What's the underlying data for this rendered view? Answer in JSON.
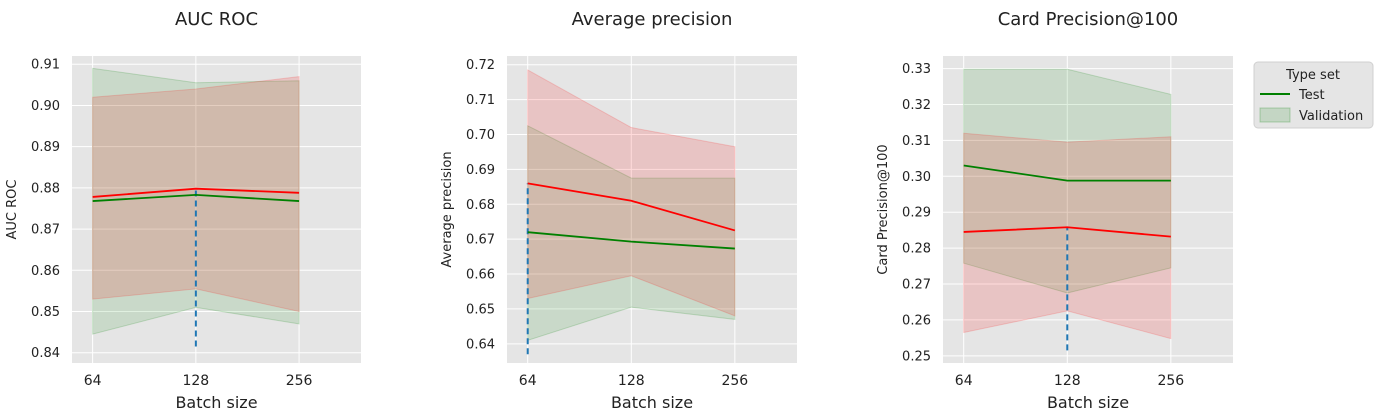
{
  "colors": {
    "background": "#e5e5e5",
    "grid": "#ffffff",
    "test": "#008000",
    "validation": "#ff0000",
    "test_band": "rgba(0,128,0,0.12)",
    "validation_band": "rgba(255,0,0,0.14)",
    "marker": "#1f77b4"
  },
  "legend": {
    "title": "Type set",
    "entries": [
      "Test",
      "Validation"
    ],
    "placement": "right, outside"
  },
  "chart_data": [
    {
      "type": "line",
      "title": "AUC ROC",
      "xlabel": "Batch size",
      "ylabel": "AUC ROC",
      "categories": [
        "64",
        "128",
        "256"
      ],
      "xlim": [
        0.2,
        0.9
      ],
      "ylim": [
        0.8375,
        0.912
      ],
      "yticks": [
        0.84,
        0.85,
        0.86,
        0.87,
        0.88,
        0.89,
        0.9,
        0.91
      ],
      "ytick_labels": [
        "0.84",
        "0.85",
        "0.86",
        "0.87",
        "0.88",
        "0.89",
        "0.90",
        "0.91"
      ],
      "grid": true,
      "series": [
        {
          "name": "Test",
          "values": [
            0.8768,
            0.8783,
            0.8768
          ],
          "upper": [
            0.909,
            0.9055,
            0.906
          ],
          "lower": [
            0.8445,
            0.851,
            0.847
          ]
        },
        {
          "name": "Validation",
          "values": [
            0.8778,
            0.8798,
            0.8788
          ],
          "upper": [
            0.902,
            0.904,
            0.907
          ],
          "lower": [
            0.853,
            0.8555,
            0.85
          ]
        }
      ],
      "marker_line": {
        "category_index": 1,
        "from": 0.8415,
        "to": 0.8798
      }
    },
    {
      "type": "line",
      "title": "Average precision",
      "xlabel": "Batch size",
      "ylabel": "Average precision",
      "categories": [
        "64",
        "128",
        "256"
      ],
      "xlim": [
        0.2,
        0.9
      ],
      "ylim": [
        0.6345,
        0.7225
      ],
      "yticks": [
        0.64,
        0.65,
        0.66,
        0.67,
        0.68,
        0.69,
        0.7,
        0.71,
        0.72
      ],
      "ytick_labels": [
        "0.64",
        "0.65",
        "0.66",
        "0.67",
        "0.68",
        "0.69",
        "0.70",
        "0.71",
        "0.72"
      ],
      "grid": true,
      "series": [
        {
          "name": "Test",
          "values": [
            0.672,
            0.6693,
            0.6673
          ],
          "upper": [
            0.7025,
            0.6875,
            0.6875
          ],
          "lower": [
            0.641,
            0.6505,
            0.647
          ]
        },
        {
          "name": "Validation",
          "values": [
            0.686,
            0.681,
            0.6725
          ],
          "upper": [
            0.7185,
            0.702,
            0.6965
          ],
          "lower": [
            0.653,
            0.6595,
            0.648
          ]
        }
      ],
      "marker_line": {
        "category_index": 0,
        "from": 0.637,
        "to": 0.686
      }
    },
    {
      "type": "line",
      "title": "Card Precision@100",
      "xlabel": "Batch size",
      "ylabel": "Card Precision@100",
      "categories": [
        "64",
        "128",
        "256"
      ],
      "xlim": [
        0.2,
        0.9
      ],
      "ylim": [
        0.248,
        0.3335
      ],
      "yticks": [
        0.25,
        0.26,
        0.27,
        0.28,
        0.29,
        0.3,
        0.31,
        0.32,
        0.33
      ],
      "ytick_labels": [
        "0.25",
        "0.26",
        "0.27",
        "0.28",
        "0.29",
        "0.30",
        "0.31",
        "0.32",
        "0.33"
      ],
      "grid": true,
      "series": [
        {
          "name": "Test",
          "values": [
            0.303,
            0.2988,
            0.2988
          ],
          "upper": [
            0.3298,
            0.3298,
            0.3228
          ],
          "lower": [
            0.2758,
            0.2675,
            0.2745
          ]
        },
        {
          "name": "Validation",
          "values": [
            0.2845,
            0.2858,
            0.2832
          ],
          "upper": [
            0.312,
            0.3095,
            0.311
          ],
          "lower": [
            0.2565,
            0.2625,
            0.2548
          ]
        }
      ],
      "marker_line": {
        "category_index": 1,
        "from": 0.2515,
        "to": 0.2858
      }
    }
  ]
}
